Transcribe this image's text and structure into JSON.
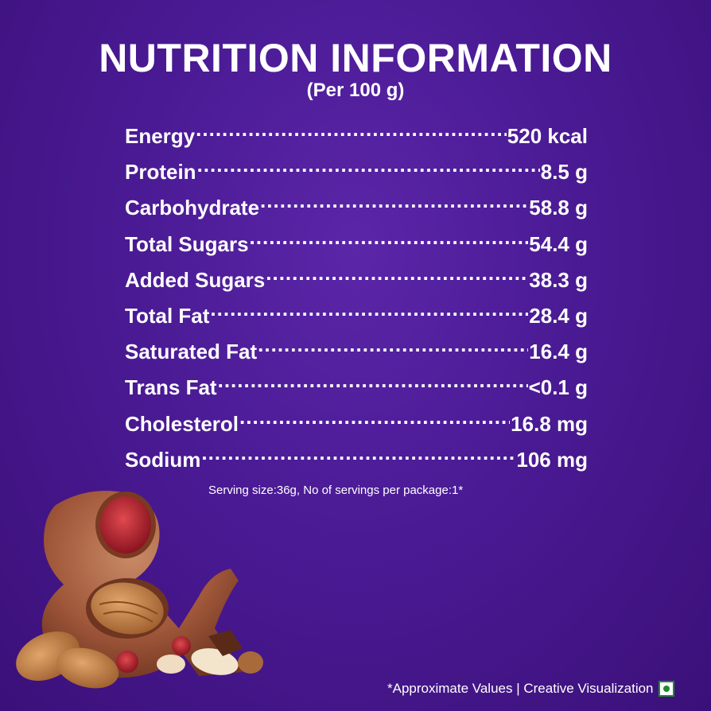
{
  "header": {
    "title": "NUTRITION INFORMATION",
    "subtitle": "(Per 100 g)"
  },
  "nutrients": [
    {
      "name": "Energy",
      "value": "520 kcal"
    },
    {
      "name": "Protein",
      "value": "8.5 g"
    },
    {
      "name": "Carbohydrate",
      "value": "58.8 g"
    },
    {
      "name": "Total Sugars",
      "value": "54.4 g"
    },
    {
      "name": "Added Sugars",
      "value": "38.3 g"
    },
    {
      "name": "Total Fat",
      "value": "28.4 g"
    },
    {
      "name": "Saturated Fat",
      "value": "16.4 g"
    },
    {
      "name": "Trans Fat",
      "value": "<0.1 g"
    },
    {
      "name": "Cholesterol",
      "value": "16.8 mg"
    },
    {
      "name": "Sodium",
      "value": "106 mg"
    }
  ],
  "serving_note": "Serving size:36g, No of servings per package:1*",
  "footer": {
    "text": "*Approximate Values | Creative Visualization",
    "veg_mark_icon": "veg-symbol-icon"
  },
  "colors": {
    "background": "#4a1a94",
    "text": "#ffffff",
    "veg_green": "#1f8a2e",
    "chocolate": "#a0573a"
  },
  "illustration_icon": "chocolate-ampersand-with-nuts-icon"
}
